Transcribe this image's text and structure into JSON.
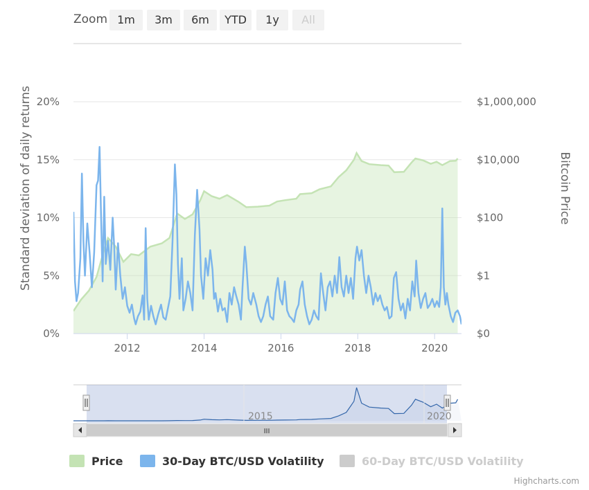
{
  "zoom": {
    "label": "Zoom",
    "buttons": [
      {
        "label": "1m",
        "enabled": true
      },
      {
        "label": "3m",
        "enabled": true
      },
      {
        "label": "6m",
        "enabled": true
      },
      {
        "label": "YTD",
        "enabled": true
      },
      {
        "label": "1y",
        "enabled": true
      },
      {
        "label": "All",
        "enabled": false
      }
    ]
  },
  "legend": [
    {
      "label": "Price",
      "color": "#c4e3b4",
      "visible": true
    },
    {
      "label": "30-Day BTC/USD Volatility",
      "color": "#7cb5ec",
      "visible": true
    },
    {
      "label": "60-Day BTC/USD Volatility",
      "color": "#cccccc",
      "visible": false
    }
  ],
  "credits": "Highcharts.com",
  "chart_data": {
    "type": "line",
    "xrange": [
      2010.6,
      2020.7
    ],
    "x_ticks": [
      "2012",
      "2014",
      "2016",
      "2018",
      "2020"
    ],
    "y_left": {
      "label": "Standard deviation of daily returns",
      "range": [
        0,
        20
      ],
      "ticks": [
        "0%",
        "5%",
        "10%",
        "15%",
        "20%"
      ]
    },
    "y_right": {
      "label": "Bitcoin Price",
      "scale": "log",
      "ticks": [
        "$0",
        "$1",
        "$100",
        "$10,000",
        "$1,000,000"
      ]
    },
    "grid": true,
    "navigator": {
      "x_labels": [
        "2015",
        "2020"
      ],
      "scrollbar_grip": "III"
    },
    "series": [
      {
        "name": "Price",
        "type": "area",
        "color": "#c4e3b4",
        "points": [
          [
            2010.6,
            0.06
          ],
          [
            2010.8,
            0.15
          ],
          [
            2011.0,
            0.3
          ],
          [
            2011.2,
            0.9
          ],
          [
            2011.4,
            8
          ],
          [
            2011.5,
            20
          ],
          [
            2011.7,
            10
          ],
          [
            2011.9,
            3
          ],
          [
            2012.1,
            5.5
          ],
          [
            2012.3,
            5
          ],
          [
            2012.6,
            10
          ],
          [
            2012.9,
            13
          ],
          [
            2013.1,
            20
          ],
          [
            2013.3,
            140
          ],
          [
            2013.5,
            90
          ],
          [
            2013.7,
            130
          ],
          [
            2013.9,
            400
          ],
          [
            2014.0,
            820
          ],
          [
            2014.2,
            550
          ],
          [
            2014.4,
            450
          ],
          [
            2014.6,
            600
          ],
          [
            2014.9,
            350
          ],
          [
            2015.1,
            230
          ],
          [
            2015.4,
            240
          ],
          [
            2015.7,
            260
          ],
          [
            2015.9,
            360
          ],
          [
            2016.1,
            400
          ],
          [
            2016.4,
            450
          ],
          [
            2016.5,
            650
          ],
          [
            2016.8,
            700
          ],
          [
            2017.0,
            950
          ],
          [
            2017.3,
            1200
          ],
          [
            2017.5,
            2500
          ],
          [
            2017.7,
            4300
          ],
          [
            2017.9,
            10000
          ],
          [
            2017.97,
            17000
          ],
          [
            2018.1,
            9000
          ],
          [
            2018.3,
            7000
          ],
          [
            2018.6,
            6500
          ],
          [
            2018.8,
            6300
          ],
          [
            2018.95,
            3700
          ],
          [
            2019.2,
            3800
          ],
          [
            2019.4,
            8000
          ],
          [
            2019.5,
            11000
          ],
          [
            2019.7,
            9500
          ],
          [
            2019.9,
            7200
          ],
          [
            2020.05,
            8500
          ],
          [
            2020.2,
            6500
          ],
          [
            2020.4,
            9000
          ],
          [
            2020.55,
            9200
          ],
          [
            2020.6,
            11000
          ]
        ]
      },
      {
        "name": "30-Day BTC/USD Volatility",
        "type": "line",
        "color": "#7cb5ec",
        "points": [
          [
            2010.6,
            10.5
          ],
          [
            2010.64,
            4.5
          ],
          [
            2010.68,
            2.8
          ],
          [
            2010.72,
            3.5
          ],
          [
            2010.78,
            6.5
          ],
          [
            2010.82,
            13.8
          ],
          [
            2010.86,
            8
          ],
          [
            2010.9,
            5
          ],
          [
            2010.96,
            9.5
          ],
          [
            2011.02,
            7
          ],
          [
            2011.08,
            4
          ],
          [
            2011.14,
            7
          ],
          [
            2011.2,
            12.8
          ],
          [
            2011.24,
            13.2
          ],
          [
            2011.28,
            16.1
          ],
          [
            2011.32,
            10
          ],
          [
            2011.36,
            4.5
          ],
          [
            2011.4,
            11.8
          ],
          [
            2011.44,
            6
          ],
          [
            2011.5,
            8
          ],
          [
            2011.56,
            5.5
          ],
          [
            2011.62,
            10
          ],
          [
            2011.66,
            7.5
          ],
          [
            2011.7,
            3.8
          ],
          [
            2011.76,
            7.8
          ],
          [
            2011.82,
            5
          ],
          [
            2011.88,
            3
          ],
          [
            2011.94,
            4
          ],
          [
            2012.0,
            2.4
          ],
          [
            2012.06,
            1.8
          ],
          [
            2012.12,
            2.5
          ],
          [
            2012.18,
            1.3
          ],
          [
            2012.22,
            0.8
          ],
          [
            2012.28,
            1.5
          ],
          [
            2012.34,
            1.9
          ],
          [
            2012.4,
            3.3
          ],
          [
            2012.44,
            1.2
          ],
          [
            2012.48,
            9.1
          ],
          [
            2012.52,
            3
          ],
          [
            2012.56,
            1.2
          ],
          [
            2012.62,
            2.4
          ],
          [
            2012.68,
            1.5
          ],
          [
            2012.74,
            0.8
          ],
          [
            2012.8,
            1.6
          ],
          [
            2012.88,
            2.5
          ],
          [
            2012.94,
            1.4
          ],
          [
            2013.0,
            1.2
          ],
          [
            2013.06,
            2.2
          ],
          [
            2013.12,
            3.2
          ],
          [
            2013.18,
            8
          ],
          [
            2013.24,
            14.6
          ],
          [
            2013.28,
            12
          ],
          [
            2013.32,
            6
          ],
          [
            2013.36,
            3
          ],
          [
            2013.42,
            6.5
          ],
          [
            2013.46,
            2
          ],
          [
            2013.52,
            3
          ],
          [
            2013.58,
            4.5
          ],
          [
            2013.64,
            3.5
          ],
          [
            2013.7,
            2
          ],
          [
            2013.76,
            8.5
          ],
          [
            2013.82,
            12.4
          ],
          [
            2013.88,
            9
          ],
          [
            2013.92,
            5
          ],
          [
            2013.98,
            3
          ],
          [
            2014.04,
            6.5
          ],
          [
            2014.1,
            5
          ],
          [
            2014.16,
            7.2
          ],
          [
            2014.22,
            5.5
          ],
          [
            2014.26,
            3
          ],
          [
            2014.3,
            3.5
          ],
          [
            2014.36,
            1.9
          ],
          [
            2014.42,
            3
          ],
          [
            2014.48,
            2
          ],
          [
            2014.54,
            2.2
          ],
          [
            2014.6,
            1
          ],
          [
            2014.66,
            3.5
          ],
          [
            2014.72,
            2.5
          ],
          [
            2014.78,
            4
          ],
          [
            2014.84,
            3.2
          ],
          [
            2014.9,
            2.5
          ],
          [
            2014.96,
            1.2
          ],
          [
            2015.0,
            4
          ],
          [
            2015.06,
            7.5
          ],
          [
            2015.1,
            6
          ],
          [
            2015.16,
            3
          ],
          [
            2015.22,
            2.5
          ],
          [
            2015.28,
            3.5
          ],
          [
            2015.36,
            2.5
          ],
          [
            2015.42,
            1.5
          ],
          [
            2015.48,
            1
          ],
          [
            2015.54,
            1.5
          ],
          [
            2015.6,
            2.5
          ],
          [
            2015.66,
            3.2
          ],
          [
            2015.72,
            1.5
          ],
          [
            2015.8,
            1.2
          ],
          [
            2015.86,
            3.5
          ],
          [
            2015.92,
            4.8
          ],
          [
            2015.98,
            3
          ],
          [
            2016.04,
            2.5
          ],
          [
            2016.1,
            4.5
          ],
          [
            2016.16,
            2
          ],
          [
            2016.22,
            1.5
          ],
          [
            2016.28,
            1.3
          ],
          [
            2016.34,
            1
          ],
          [
            2016.4,
            2
          ],
          [
            2016.46,
            2.5
          ],
          [
            2016.5,
            3.8
          ],
          [
            2016.56,
            4.5
          ],
          [
            2016.62,
            2.5
          ],
          [
            2016.68,
            1.5
          ],
          [
            2016.74,
            0.8
          ],
          [
            2016.8,
            1.2
          ],
          [
            2016.86,
            2
          ],
          [
            2016.92,
            1.5
          ],
          [
            2016.98,
            1.2
          ],
          [
            2017.04,
            5.2
          ],
          [
            2017.1,
            3.5
          ],
          [
            2017.16,
            2
          ],
          [
            2017.22,
            4
          ],
          [
            2017.28,
            4.5
          ],
          [
            2017.34,
            3.2
          ],
          [
            2017.4,
            5
          ],
          [
            2017.46,
            3.5
          ],
          [
            2017.52,
            6.6
          ],
          [
            2017.58,
            4
          ],
          [
            2017.64,
            3.2
          ],
          [
            2017.7,
            5
          ],
          [
            2017.76,
            3.5
          ],
          [
            2017.82,
            4.8
          ],
          [
            2017.88,
            3
          ],
          [
            2017.94,
            6.5
          ],
          [
            2017.98,
            7.5
          ],
          [
            2018.04,
            6.3
          ],
          [
            2018.1,
            7.2
          ],
          [
            2018.16,
            5
          ],
          [
            2018.22,
            3.5
          ],
          [
            2018.28,
            5
          ],
          [
            2018.34,
            4
          ],
          [
            2018.4,
            2.5
          ],
          [
            2018.46,
            3.5
          ],
          [
            2018.52,
            2.8
          ],
          [
            2018.58,
            3.3
          ],
          [
            2018.64,
            2.5
          ],
          [
            2018.7,
            2
          ],
          [
            2018.76,
            2.3
          ],
          [
            2018.82,
            1.3
          ],
          [
            2018.88,
            1.5
          ],
          [
            2018.94,
            4.8
          ],
          [
            2019.0,
            5.3
          ],
          [
            2019.06,
            3
          ],
          [
            2019.12,
            2
          ],
          [
            2019.18,
            2.6
          ],
          [
            2019.24,
            1.3
          ],
          [
            2019.3,
            3
          ],
          [
            2019.36,
            2
          ],
          [
            2019.42,
            4.5
          ],
          [
            2019.48,
            3.2
          ],
          [
            2019.52,
            6.3
          ],
          [
            2019.58,
            3.5
          ],
          [
            2019.64,
            2.2
          ],
          [
            2019.7,
            3
          ],
          [
            2019.76,
            3.5
          ],
          [
            2019.82,
            2.2
          ],
          [
            2019.88,
            2.5
          ],
          [
            2019.94,
            3
          ],
          [
            2020.0,
            2.3
          ],
          [
            2020.06,
            2.8
          ],
          [
            2020.12,
            2.3
          ],
          [
            2020.16,
            4
          ],
          [
            2020.2,
            10.8
          ],
          [
            2020.24,
            4
          ],
          [
            2020.28,
            2.5
          ],
          [
            2020.32,
            3.5
          ],
          [
            2020.36,
            2.5
          ],
          [
            2020.42,
            1.5
          ],
          [
            2020.48,
            1
          ],
          [
            2020.54,
            1.8
          ],
          [
            2020.6,
            2
          ],
          [
            2020.66,
            1.5
          ],
          [
            2020.7,
            0.8
          ]
        ]
      },
      {
        "name": "60-Day BTC/USD Volatility",
        "type": "line",
        "color": "#cccccc",
        "visible": false,
        "points": []
      }
    ]
  }
}
